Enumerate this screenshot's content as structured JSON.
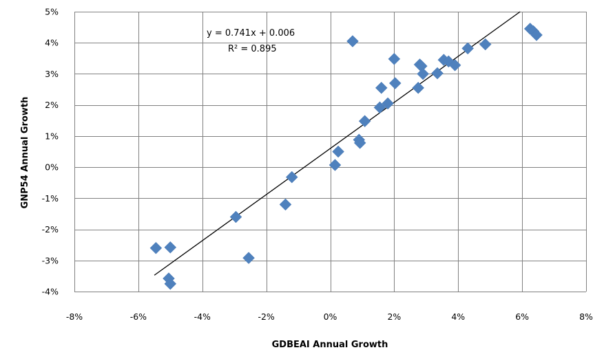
{
  "chart_data": {
    "type": "scatter",
    "xlabel": "GDBEAI Annual Growth",
    "ylabel": "GNP54 Annual Growth",
    "xlim": [
      -0.08,
      0.08
    ],
    "ylim": [
      -0.04,
      0.05
    ],
    "xticks": [
      -0.08,
      -0.06,
      -0.04,
      -0.02,
      0,
      0.02,
      0.04,
      0.06,
      0.08
    ],
    "yticks": [
      -0.04,
      -0.03,
      -0.02,
      -0.01,
      0,
      0.01,
      0.02,
      0.03,
      0.04,
      0.05
    ],
    "xtick_labels": [
      "-8%",
      "-6%",
      "-4%",
      "-2%",
      "0%",
      "2%",
      "4%",
      "6%",
      "8%"
    ],
    "ytick_labels": [
      "-4%",
      "-3%",
      "-2%",
      "-1%",
      "0%",
      "1%",
      "2%",
      "3%",
      "4%",
      "5%"
    ],
    "grid": true,
    "marker": "diamond",
    "marker_color": "#4f81bd",
    "trendline": {
      "slope": 0.741,
      "intercept": 0.006,
      "x_range": [
        -0.055,
        0.0605
      ],
      "equation": "y = 0.741x + 0.006",
      "r_squared": "R² = 0.895"
    },
    "points": [
      {
        "x": -0.0545,
        "y": -0.026
      },
      {
        "x": -0.05,
        "y": -0.0258
      },
      {
        "x": -0.0505,
        "y": -0.0358
      },
      {
        "x": -0.05,
        "y": -0.0375
      },
      {
        "x": -0.0295,
        "y": -0.016
      },
      {
        "x": -0.0255,
        "y": -0.0292
      },
      {
        "x": -0.014,
        "y": -0.012
      },
      {
        "x": -0.012,
        "y": -0.0032
      },
      {
        "x": 0.0015,
        "y": 0.0007
      },
      {
        "x": 0.0025,
        "y": 0.005
      },
      {
        "x": 0.007,
        "y": 0.0405
      },
      {
        "x": 0.009,
        "y": 0.0088
      },
      {
        "x": 0.0093,
        "y": 0.0078
      },
      {
        "x": 0.0108,
        "y": 0.0148
      },
      {
        "x": 0.0155,
        "y": 0.0192
      },
      {
        "x": 0.016,
        "y": 0.0255
      },
      {
        "x": 0.018,
        "y": 0.0205
      },
      {
        "x": 0.02,
        "y": 0.0348
      },
      {
        "x": 0.0203,
        "y": 0.027
      },
      {
        "x": 0.0275,
        "y": 0.0255
      },
      {
        "x": 0.028,
        "y": 0.033
      },
      {
        "x": 0.0285,
        "y": 0.0325
      },
      {
        "x": 0.029,
        "y": 0.03
      },
      {
        "x": 0.0335,
        "y": 0.0302
      },
      {
        "x": 0.0355,
        "y": 0.0345
      },
      {
        "x": 0.037,
        "y": 0.034
      },
      {
        "x": 0.039,
        "y": 0.0328
      },
      {
        "x": 0.043,
        "y": 0.0382
      },
      {
        "x": 0.0485,
        "y": 0.0395
      },
      {
        "x": 0.0625,
        "y": 0.0445
      },
      {
        "x": 0.0635,
        "y": 0.0437
      },
      {
        "x": 0.0645,
        "y": 0.0425
      }
    ]
  }
}
